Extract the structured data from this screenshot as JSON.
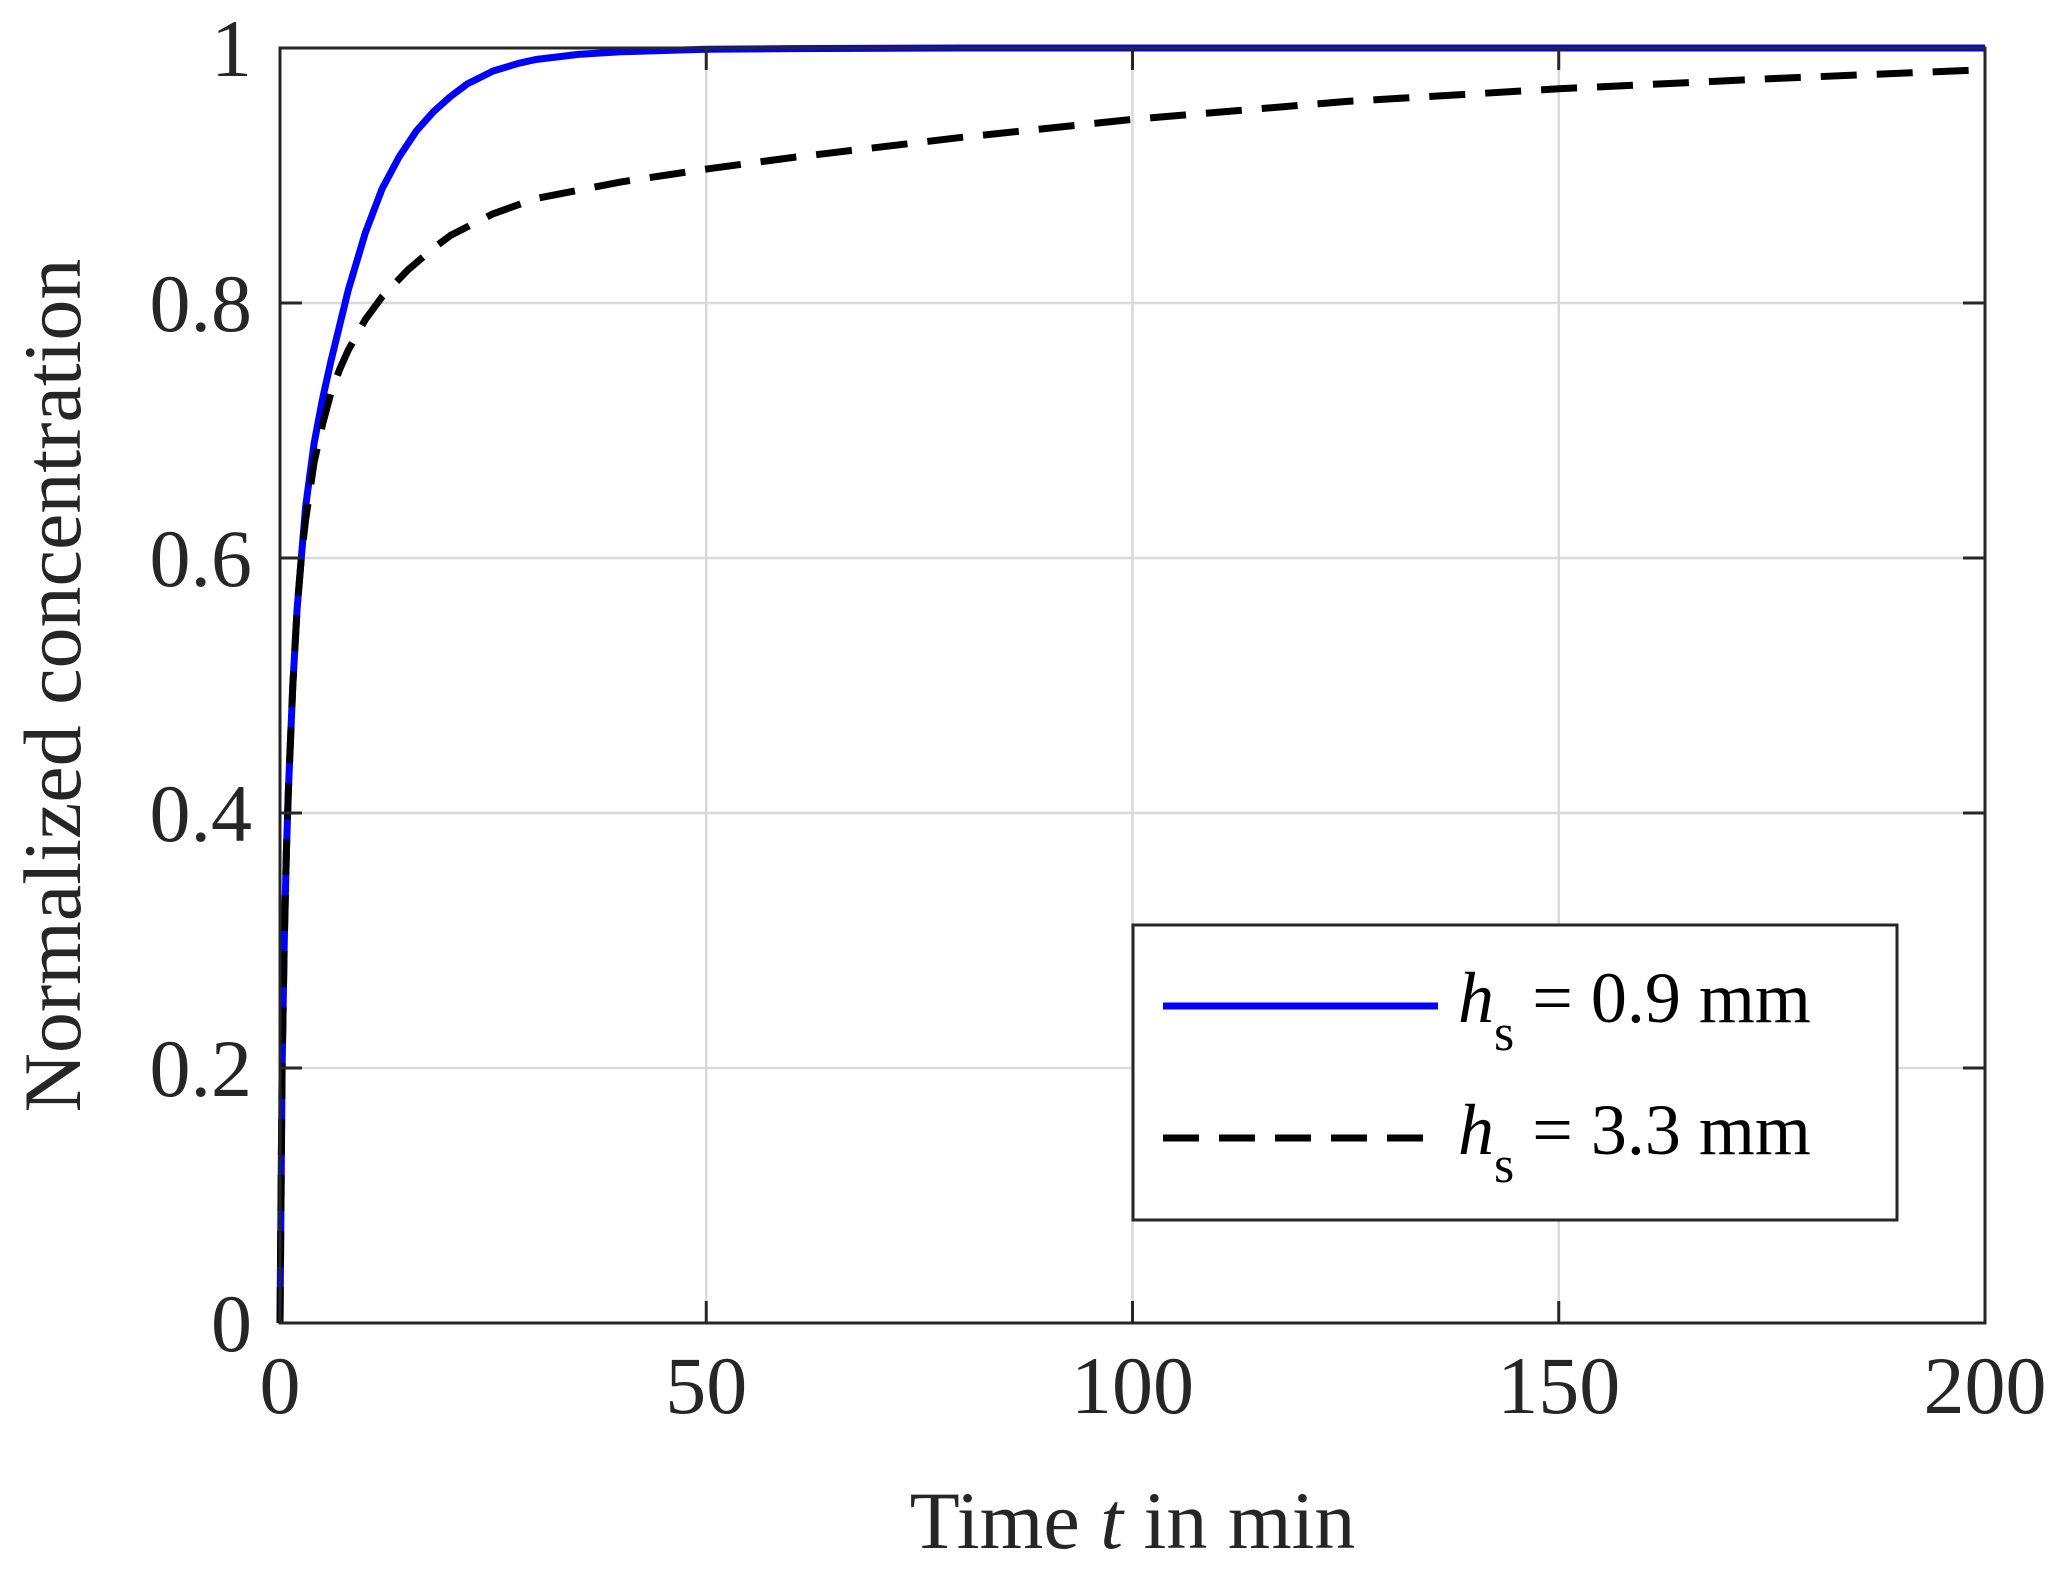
{
  "chart_data": {
    "type": "line",
    "xlabel": {
      "prefix": "Time ",
      "variable": "t",
      "suffix": " in min"
    },
    "ylabel": "Normalized concentration",
    "xlim": [
      0,
      200
    ],
    "ylim": [
      0,
      1
    ],
    "xticks": [
      0,
      50,
      100,
      150,
      200
    ],
    "yticks": [
      0,
      0.2,
      0.4,
      0.6,
      0.8,
      1
    ],
    "xtick_labels": [
      "0",
      "50",
      "100",
      "150",
      "200"
    ],
    "ytick_labels": [
      "0",
      "0.2",
      "0.4",
      "0.6",
      "0.8",
      "1"
    ],
    "grid": true,
    "legend_position": "lower-right",
    "series": [
      {
        "name": "h_s = 0.9 mm",
        "legend": {
          "var": "h",
          "sub": "s",
          "rest": " = 0.9 mm"
        },
        "color": "#0000ff",
        "style": "solid",
        "x": [
          0,
          0.25,
          0.5,
          0.75,
          1,
          1.5,
          2,
          2.5,
          3,
          4,
          5,
          6,
          8,
          10,
          12,
          14,
          16,
          18,
          20,
          22,
          25,
          28,
          30,
          35,
          40,
          45,
          50,
          60,
          80,
          100,
          150,
          200
        ],
        "y": [
          0,
          0.2,
          0.3,
          0.37,
          0.42,
          0.5,
          0.56,
          0.6,
          0.64,
          0.69,
          0.725,
          0.755,
          0.81,
          0.855,
          0.89,
          0.915,
          0.935,
          0.95,
          0.962,
          0.972,
          0.982,
          0.988,
          0.991,
          0.995,
          0.997,
          0.998,
          0.999,
          0.9995,
          1,
          1,
          1,
          1
        ]
      },
      {
        "name": "h_s = 3.3 mm",
        "legend": {
          "var": "h",
          "sub": "s",
          "rest": " = 3.3 mm"
        },
        "color": "#000000",
        "style": "dashed",
        "x": [
          0,
          0.25,
          0.5,
          0.75,
          1,
          1.5,
          2,
          2.5,
          3,
          4,
          5,
          6,
          7,
          8,
          10,
          12,
          15,
          18,
          20,
          25,
          30,
          40,
          50,
          60,
          80,
          100,
          125,
          150,
          175,
          200
        ],
        "y": [
          0,
          0.2,
          0.3,
          0.37,
          0.42,
          0.5,
          0.56,
          0.6,
          0.63,
          0.675,
          0.705,
          0.73,
          0.748,
          0.763,
          0.787,
          0.805,
          0.826,
          0.843,
          0.853,
          0.87,
          0.882,
          0.895,
          0.905,
          0.914,
          0.93,
          0.944,
          0.958,
          0.968,
          0.976,
          0.983
        ]
      }
    ]
  },
  "colors": {
    "axes": "#262626",
    "grid": "#d9d9d9",
    "background": "#ffffff"
  }
}
